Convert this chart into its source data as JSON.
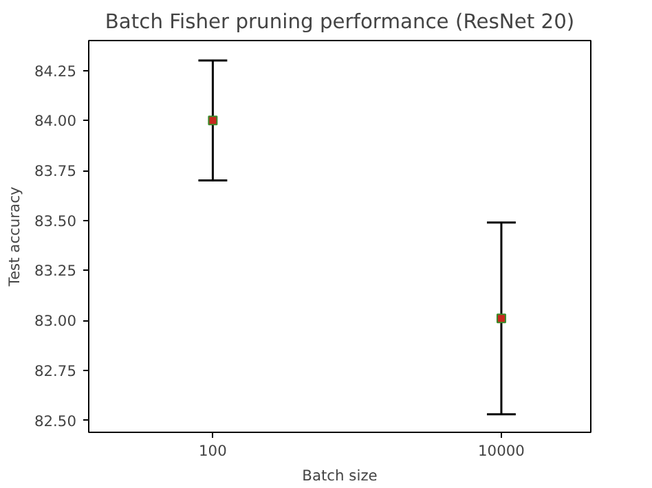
{
  "chart_data": {
    "type": "scatter",
    "title": "Batch Fisher pruning performance (ResNet 20)",
    "xlabel": "Batch size",
    "ylabel": "Test accuracy",
    "categories": [
      "100",
      "10000"
    ],
    "series": [
      {
        "color": "#c8281e",
        "values": [
          84.0,
          83.01
        ],
        "errors": [
          0.3,
          0.48
        ]
      }
    ],
    "marker": "square",
    "ylim": [
      82.44,
      84.4
    ],
    "yticks": [
      {
        "value": 82.5,
        "label": "82.50"
      },
      82.75,
      {
        "value": 83.0,
        "label": "83.00"
      },
      83.25,
      {
        "value": 83.5,
        "label": "83.50"
      },
      83.75,
      {
        "value": 84.0,
        "label": "84.00"
      },
      84.25
    ]
  }
}
